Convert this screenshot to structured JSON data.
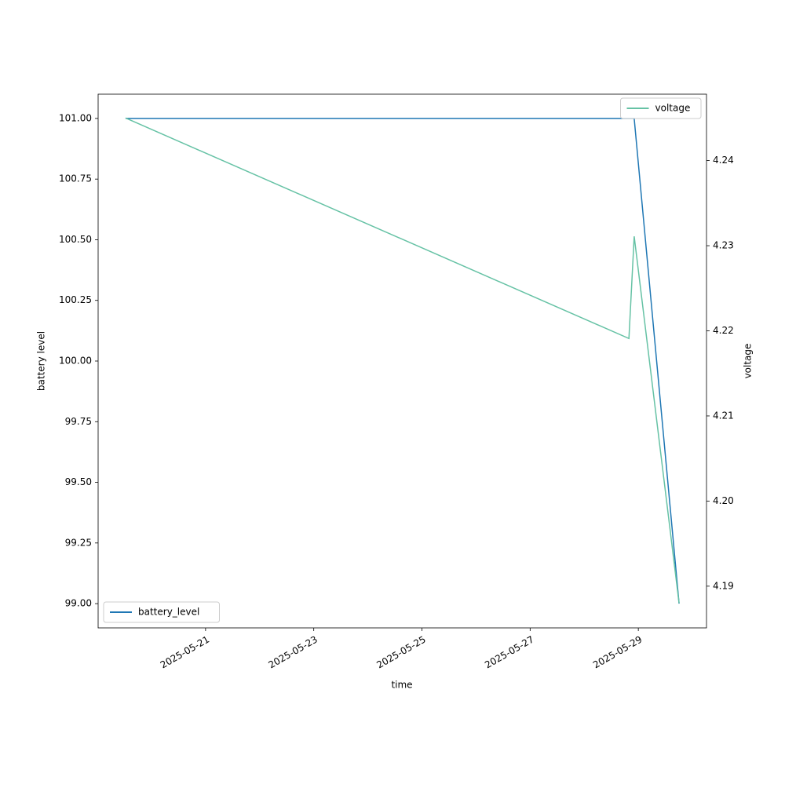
{
  "chart_data": {
    "type": "line",
    "xlabel": "time",
    "ylabel": "battery level",
    "y2label": "voltage",
    "x": [
      "2025-05-19T12:30",
      "2025-05-28T19:50",
      "2025-05-28T22:10",
      "2025-05-29T18:05"
    ],
    "xlim": [
      "2025-05-19T00:20",
      "2025-05-30T06:15"
    ],
    "xticks": [
      "2025-05-21",
      "2025-05-23",
      "2025-05-25",
      "2025-05-27",
      "2025-05-29"
    ],
    "ylim": [
      98.9,
      101.1
    ],
    "yticks": [
      {
        "value": 99,
        "label": "99.00"
      },
      99.25,
      {
        "value": 99.5,
        "label": "99.50"
      },
      99.75,
      {
        "value": 100,
        "label": "100.00"
      },
      100.25,
      {
        "value": 100.5,
        "label": "100.50"
      },
      100.75,
      {
        "value": 101,
        "label": "101.00"
      }
    ],
    "y2lim": [
      4.1851,
      4.2478
    ],
    "y2ticks": [
      4.19,
      {
        "value": 4.2,
        "label": "4.20"
      },
      4.21,
      4.22,
      4.23,
      4.24
    ],
    "series": [
      {
        "name": "battery_level",
        "color": "#1f77b4",
        "values": [
          101,
          101,
          101,
          99
        ],
        "legend": "lower left"
      },
      {
        "name": "voltage",
        "color": "#66c2a5",
        "values": [
          4.245,
          4.2191,
          4.2311,
          4.188
        ],
        "axis": "y2",
        "legend": "upper right"
      }
    ]
  }
}
